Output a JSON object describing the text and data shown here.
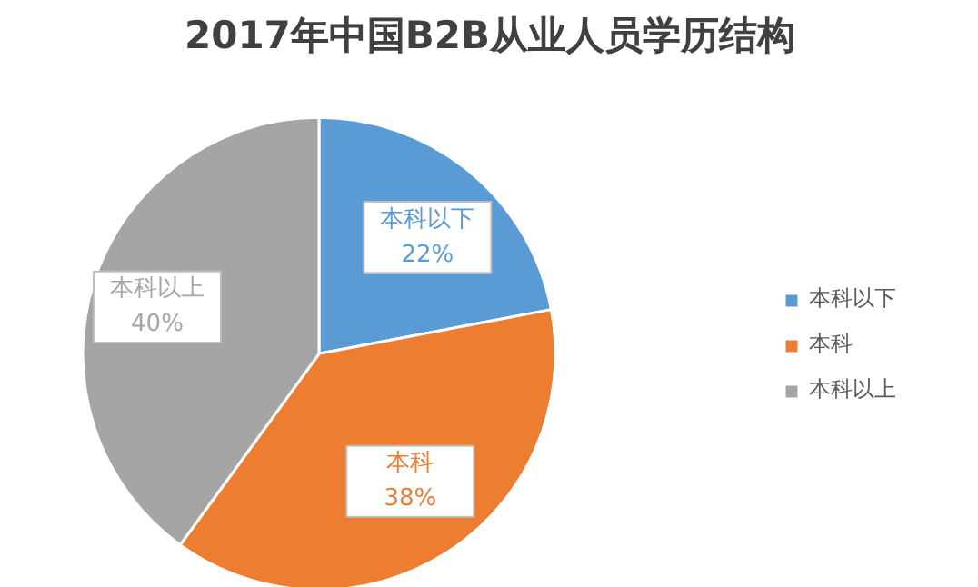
{
  "chart_data": {
    "type": "pie",
    "title": "2017年中国B2B从业人员学历结构",
    "categories": [
      "本科以下",
      "本科",
      "本科以上"
    ],
    "values": [
      22,
      38,
      40
    ],
    "colors": [
      "#5b9bd5",
      "#ed7d31",
      "#a5a5a5"
    ],
    "value_labels": [
      "22%",
      "38%",
      "40%"
    ],
    "legend": "right"
  }
}
